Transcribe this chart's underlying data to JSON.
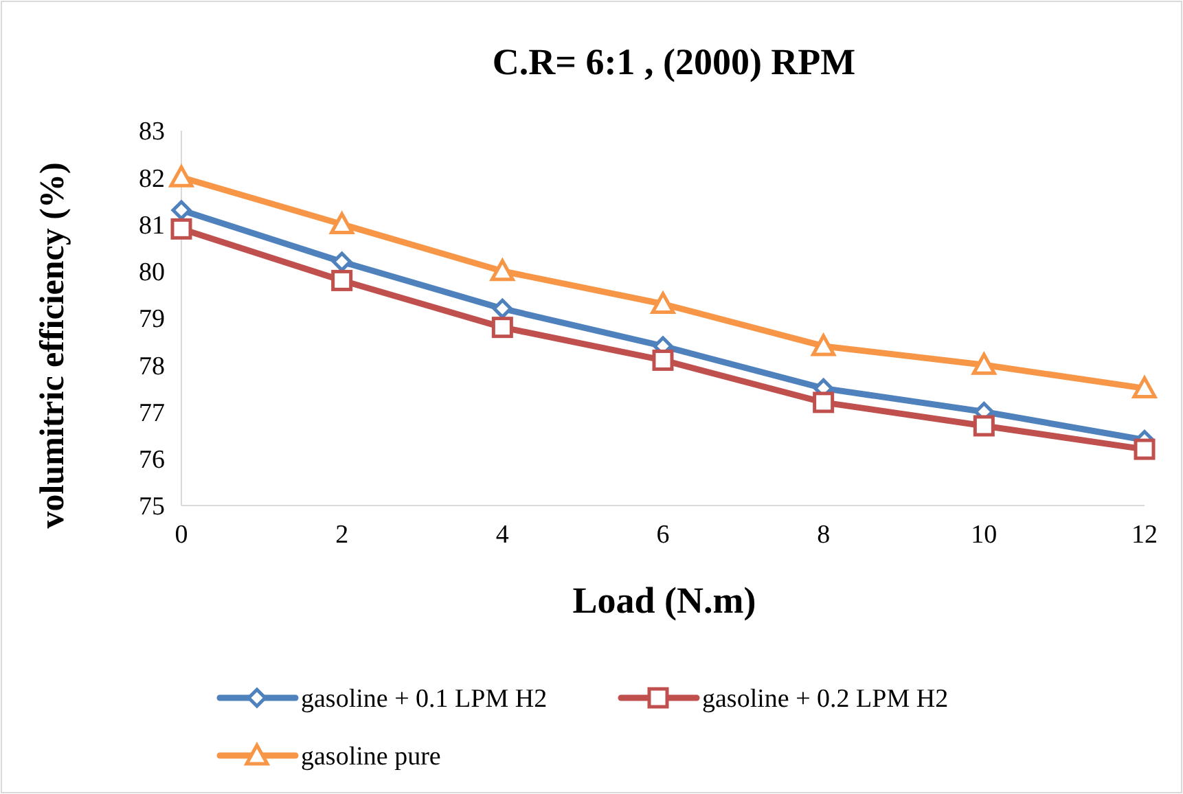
{
  "chart_data": {
    "type": "line",
    "title": "C.R= 6:1 , (2000) RPM",
    "xlabel": "Load (N.m)",
    "ylabel": "volumitric efficiency (%)",
    "categories": [
      "0",
      "2",
      "4",
      "6",
      "8",
      "10",
      "12"
    ],
    "ylim": [
      75,
      83
    ],
    "yticks": [
      75,
      76,
      77,
      78,
      79,
      80,
      81,
      82,
      83
    ],
    "grid": false,
    "legend": "bottom",
    "series": [
      {
        "name": "gasoline + 0.1 LPM H2",
        "color": "#4f81bd",
        "marker": "diamond",
        "values": [
          81.3,
          80.2,
          79.2,
          78.4,
          77.5,
          77.0,
          76.4
        ]
      },
      {
        "name": "gasoline + 0.2 LPM H2",
        "color": "#c0504d",
        "marker": "square",
        "values": [
          80.9,
          79.8,
          78.8,
          78.1,
          77.2,
          76.7,
          76.2
        ]
      },
      {
        "name": "gasoline pure",
        "color": "#f79646",
        "marker": "triangle",
        "values": [
          82.0,
          81.0,
          80.0,
          79.3,
          78.4,
          78.0,
          77.5
        ]
      }
    ]
  }
}
